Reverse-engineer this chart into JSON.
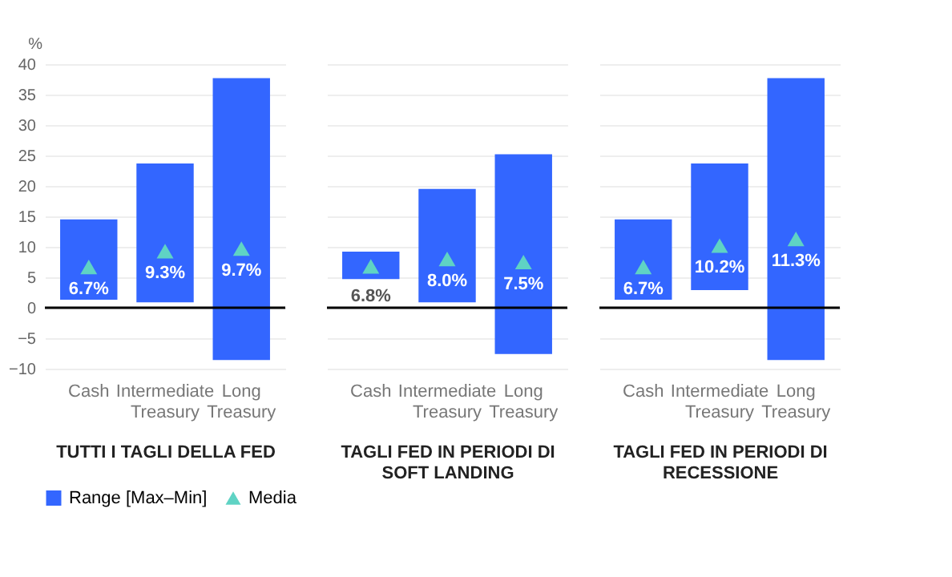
{
  "chart_data": [
    {
      "type": "bar",
      "categories": [
        "Cash",
        "Intermediate Treasury",
        "Long Treasury"
      ],
      "xlabel": "TUTTI I TAGLI DELLA FED",
      "ylabel": "%",
      "ylim": [
        -10,
        40
      ],
      "yticks": [
        -10,
        -5,
        0,
        5,
        10,
        15,
        20,
        25,
        30,
        35,
        40
      ],
      "grid": "y",
      "legend": "bottom",
      "ref_lines": [
        {
          "axis": "y",
          "value": 0,
          "color": "#000000"
        }
      ],
      "series": [
        {
          "name": "Range [Max–Min]",
          "color": "#3366ff",
          "base": [
            1.3,
            0.9,
            -8.6
          ],
          "values": [
            13.2,
            22.8,
            46.3
          ]
        },
        {
          "name": "Media",
          "type": "scatter",
          "marker": "triangle",
          "color": "#5fd3c4",
          "values": [
            6.7,
            9.3,
            9.7
          ],
          "value_labels": [
            "6.7%",
            "9.3%",
            "9.7%"
          ]
        }
      ]
    },
    {
      "type": "bar",
      "categories": [
        "Cash",
        "Intermediate Treasury",
        "Long Treasury"
      ],
      "xlabel": "TAGLI FED IN PERIODI DI SOFT LANDING",
      "ylim": [
        -10,
        40
      ],
      "yticks": [
        -10,
        -5,
        0,
        5,
        10,
        15,
        20,
        25,
        30,
        35,
        40
      ],
      "grid": "y",
      "tick_labels": "x",
      "ref_lines": [
        {
          "axis": "y",
          "value": 0,
          "color": "#000000"
        }
      ],
      "series": [
        {
          "color": "#3366ff",
          "base": [
            4.7,
            0.9,
            -7.6
          ],
          "values": [
            4.5,
            18.6,
            32.8
          ]
        },
        {
          "type": "scatter",
          "marker": "triangle",
          "color": "#5fd3c4",
          "values": [
            6.8,
            8.0,
            7.5
          ],
          "value_labels": [
            "6.8%",
            "8.0%",
            "7.5%"
          ]
        }
      ]
    },
    {
      "type": "bar",
      "categories": [
        "Cash",
        "Intermediate Treasury",
        "Long Treasury"
      ],
      "xlabel": "TAGLI FED IN PERIODI DI RECESSIONE",
      "ylim": [
        -10,
        40
      ],
      "yticks": [
        -10,
        -5,
        0,
        5,
        10,
        15,
        20,
        25,
        30,
        35,
        40
      ],
      "grid": "y",
      "tick_labels": "x",
      "ref_lines": [
        {
          "axis": "y",
          "value": 0,
          "color": "#000000"
        }
      ],
      "series": [
        {
          "color": "#3366ff",
          "base": [
            1.3,
            2.9,
            -8.6
          ],
          "values": [
            13.2,
            20.8,
            46.3
          ]
        },
        {
          "type": "scatter",
          "marker": "triangle",
          "color": "#5fd3c4",
          "values": [
            6.7,
            10.2,
            11.3
          ],
          "value_labels": [
            "6.7%",
            "10.2%",
            "11.3%"
          ]
        }
      ]
    }
  ]
}
